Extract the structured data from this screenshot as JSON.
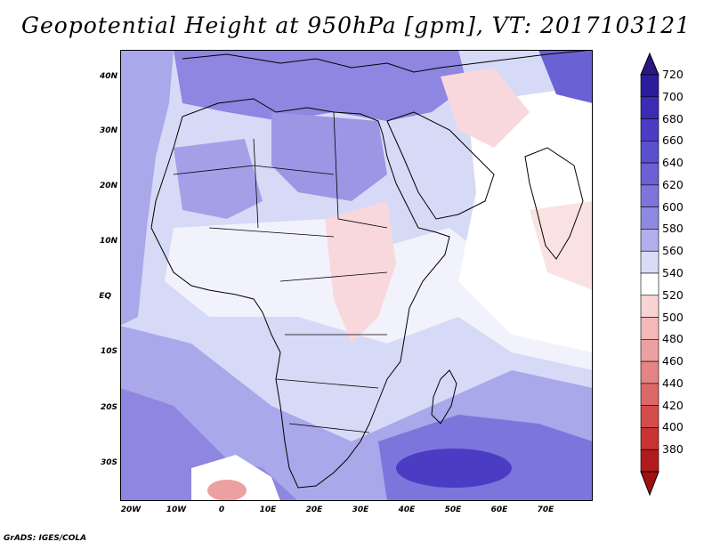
{
  "title": "Geopotential Height at 950hPa [gpm], VT: 2017103121",
  "footer": "GrADS: IGES/COLA",
  "lat_labels": [
    "40N",
    "30N",
    "20N",
    "10N",
    "EQ",
    "10S",
    "20S",
    "30S"
  ],
  "lon_labels": [
    "20W",
    "10W",
    "0",
    "10E",
    "20E",
    "30E",
    "40E",
    "50E",
    "60E",
    "70E"
  ],
  "colorbar": {
    "labels": [
      "720",
      "700",
      "680",
      "660",
      "640",
      "620",
      "600",
      "580",
      "560",
      "540",
      "520",
      "500",
      "480",
      "460",
      "440",
      "420",
      "400",
      "380"
    ],
    "colors": [
      "#2b1c9c",
      "#3a2db4",
      "#4a3dc4",
      "#5a4fcc",
      "#6a62d4",
      "#7c76dc",
      "#8e8ae2",
      "#b0b0ec",
      "#d8dcf6",
      "#ffffff",
      "#f8d4d4",
      "#f4b8b8",
      "#eca0a0",
      "#e48484",
      "#dc6868",
      "#d44c4c",
      "#c83232",
      "#b01c1c"
    ],
    "top_arrow_color": "#2a1880",
    "bottom_arrow_color": "#a01010"
  }
}
